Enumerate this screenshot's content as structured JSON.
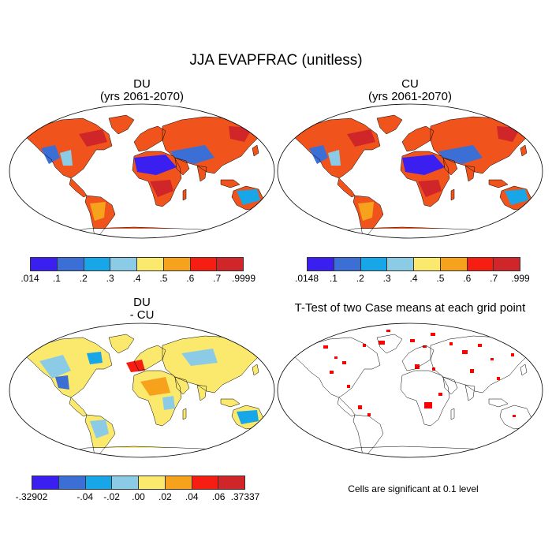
{
  "figure": {
    "title": "JJA EVAPFRAC (unitless)"
  },
  "panels": [
    {
      "title": "DU",
      "subtitle": "(yrs 2061-2070)",
      "type": "field"
    },
    {
      "title": "CU",
      "subtitle": "(yrs 2061-2070)",
      "type": "field"
    },
    {
      "title": "DU",
      "subtitle": "- CU",
      "type": "difference"
    },
    {
      "title": "T-Test of two Case means at each grid point",
      "subtitle": "",
      "type": "significance"
    }
  ],
  "colorbars": [
    {
      "labels": [
        ".014",
        ".1",
        ".2",
        ".3",
        ".4",
        ".5",
        ".6",
        ".7",
        ".9999"
      ]
    },
    {
      "labels": [
        ".0148",
        ".1",
        ".2",
        ".3",
        ".4",
        ".5",
        ".6",
        ".7",
        ".999"
      ]
    },
    {
      "labels": [
        "-.32902",
        "-.04",
        "-.02",
        ".00",
        ".02",
        ".04",
        ".06",
        ".37337"
      ]
    }
  ],
  "palette": [
    "#3a1ff0",
    "#3b6fd6",
    "#17a6e8",
    "#8ccbe6",
    "#fbe96e",
    "#f6a21c",
    "#f61e13",
    "#d0262a"
  ],
  "significance": {
    "color": "#ff0000",
    "note": "Cells are significant at 0.1 level"
  }
}
